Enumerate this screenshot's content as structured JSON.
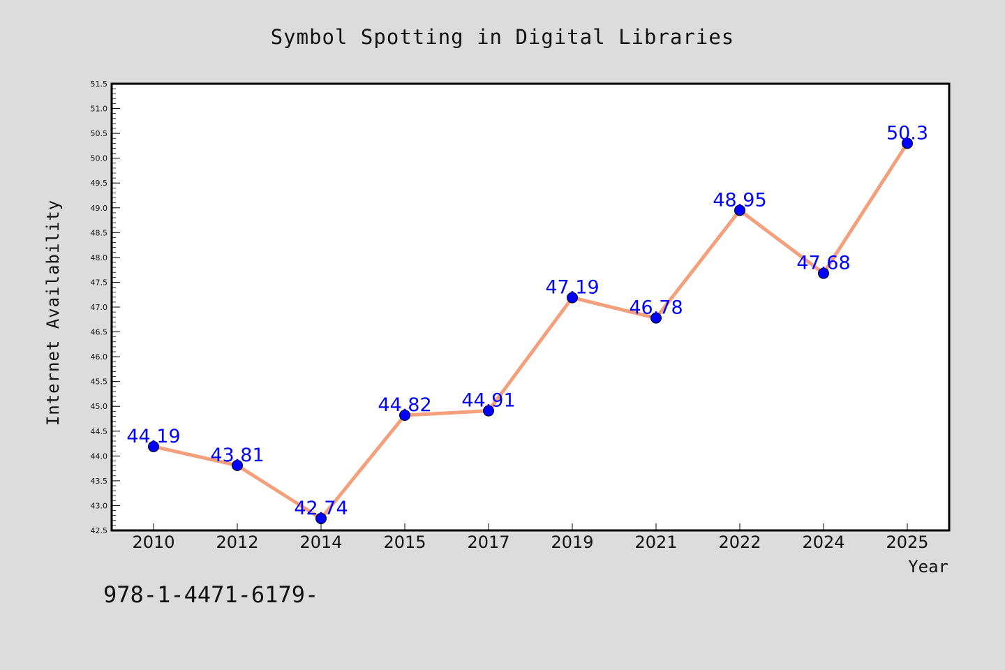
{
  "chart_data": {
    "type": "line",
    "title": "Symbol Spotting in Digital Libraries",
    "xlabel": "Year",
    "ylabel": "Internet Availability",
    "categories": [
      "2010",
      "2012",
      "2014",
      "2015",
      "2017",
      "2019",
      "2021",
      "2022",
      "2024",
      "2025"
    ],
    "series": [
      {
        "values": [
          44.19,
          43.81,
          42.74,
          44.82,
          44.91,
          47.19,
          46.78,
          48.95,
          47.68,
          50.3
        ],
        "data_labels": [
          "44.19",
          "43.81",
          "42.74",
          "44.82",
          "44.91",
          "47.19",
          "46.78",
          "48.95",
          "47.68",
          "50.3"
        ],
        "line_color": "#f4a07c",
        "marker_color": "#0000ff"
      }
    ],
    "ylim": [
      42.5,
      51.5
    ],
    "yticks": [
      "42.5",
      "43.0",
      "43.5",
      "44.0",
      "44.5",
      "45.0",
      "45.5",
      "46.0",
      "46.5",
      "47.0",
      "47.5",
      "48.0",
      "48.5",
      "49.0",
      "49.5",
      "50.0",
      "50.5",
      "51.0",
      "51.5"
    ],
    "grid": false,
    "legend": "none"
  },
  "annotation": "978-1-4471-6179-",
  "colors": {
    "page_background": "#dcdcdc",
    "plot_background": "#ffffff",
    "label_color": "#0000ff"
  }
}
